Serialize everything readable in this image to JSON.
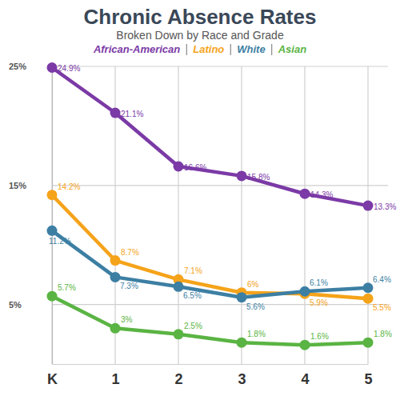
{
  "chart_data": {
    "type": "line",
    "title": "Chronic Absence Rates",
    "subtitle": "Broken Down by Race and Grade",
    "categories": [
      "K",
      "1",
      "2",
      "3",
      "4",
      "5"
    ],
    "series": [
      {
        "name": "African-American",
        "color": "#7b3aa6",
        "values": [
          24.9,
          21.1,
          16.6,
          15.8,
          14.3,
          13.3
        ],
        "value_labels": [
          "24.9%",
          "21.1%",
          "16.6%",
          "15.8%",
          "14.3%",
          "13.3%"
        ]
      },
      {
        "name": "Latino",
        "color": "#f5a31a",
        "values": [
          14.2,
          8.7,
          7.1,
          6,
          5.9,
          5.5
        ],
        "value_labels": [
          "14.2%",
          "8.7%",
          "7.1%",
          "6%",
          "5.9%",
          "5.5%"
        ]
      },
      {
        "name": "White",
        "color": "#3d7fa3",
        "values": [
          11.2,
          7.3,
          6.5,
          5.6,
          6.1,
          6.4
        ],
        "value_labels": [
          "11.2%",
          "7.3%",
          "6.5%",
          "5.6%",
          "6.1%",
          "6.4%"
        ]
      },
      {
        "name": "Asian",
        "color": "#5ab443",
        "values": [
          5.7,
          3,
          2.5,
          1.8,
          1.6,
          1.8
        ],
        "value_labels": [
          "5.7%",
          "3%",
          "2.5%",
          "1.8%",
          "1.6%",
          "1.8%"
        ]
      }
    ],
    "ylim": [
      0,
      25
    ],
    "yticks": [
      {
        "value": 5,
        "label": "5%"
      },
      {
        "value": 15,
        "label": "15%"
      },
      {
        "value": 25,
        "label": "25%"
      }
    ],
    "grid": true,
    "data_labels": true,
    "marker": "circle"
  }
}
